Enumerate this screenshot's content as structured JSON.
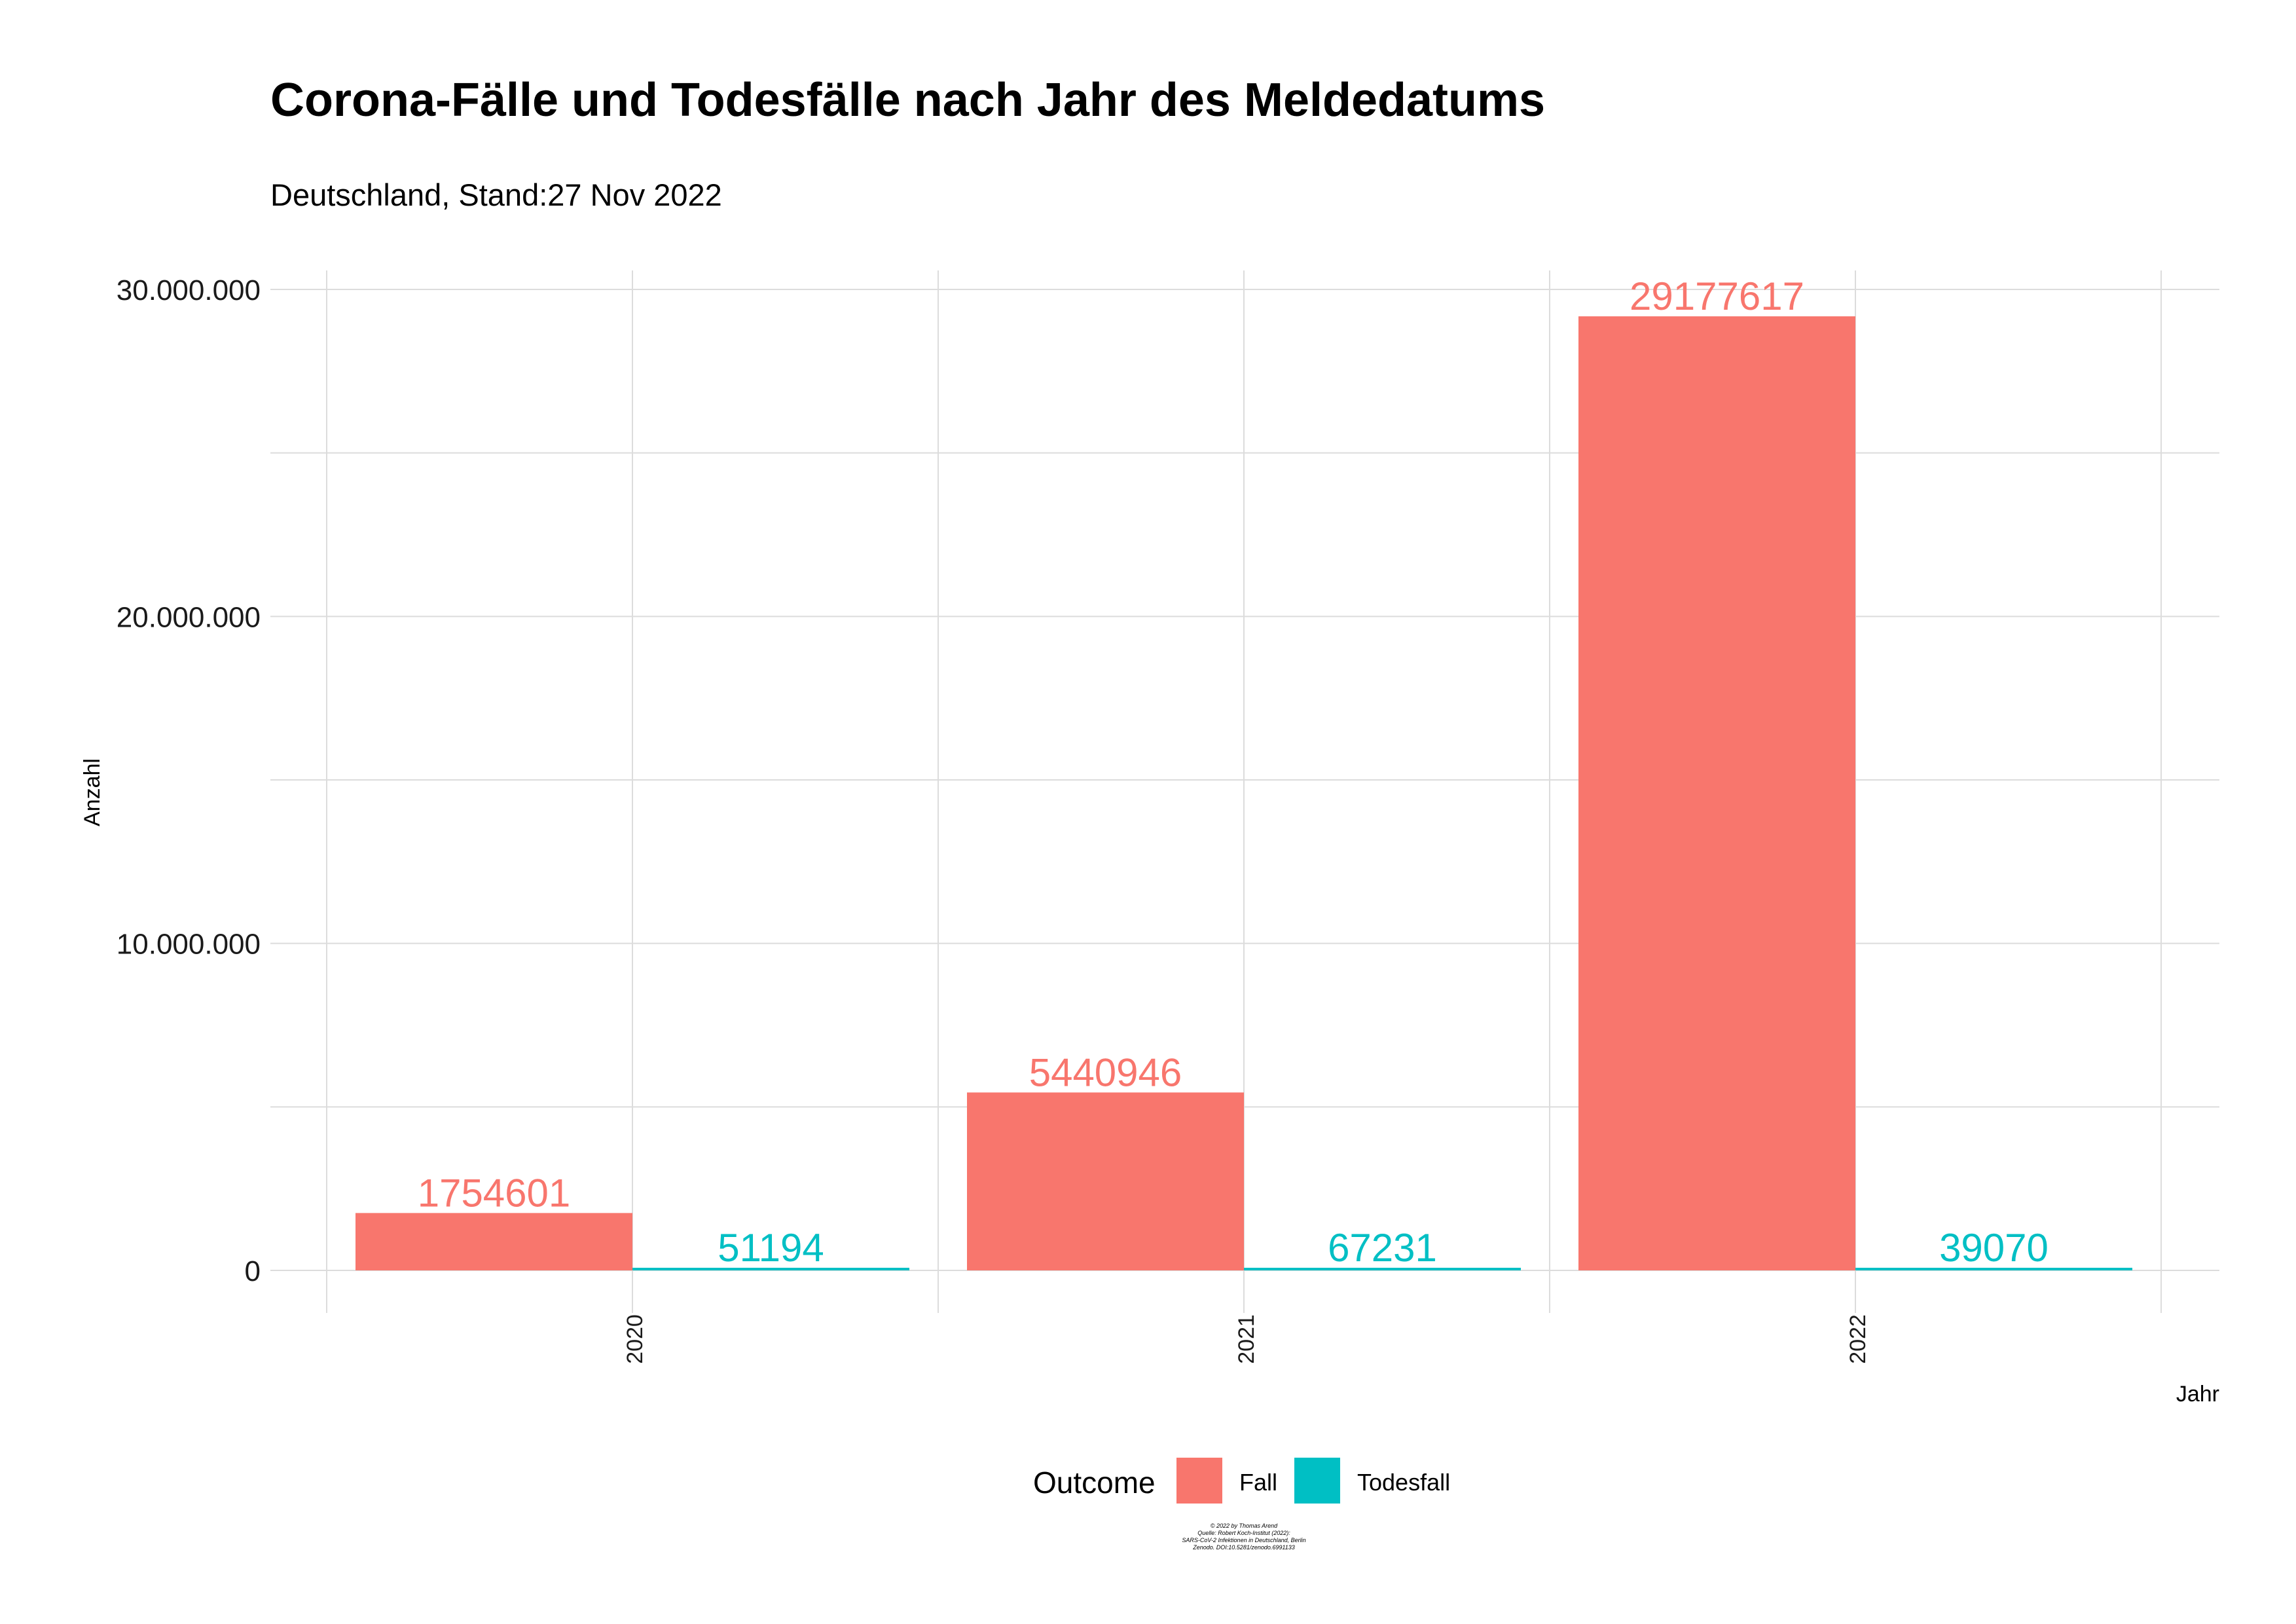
{
  "title": "Corona-Fälle und Todesfälle nach Jahr des Meldedatums",
  "subtitle": "Deutschland, Stand:27 Nov 2022",
  "caption": [
    "© 2022 by Thomas Arend",
    "Quelle: Robert Koch-Institut (2022):",
    "SARS-CoV-2 Infektionen in Deutschland, Berlin",
    "Zenodo. DOI:10.5281/zenodo.6991133"
  ],
  "colors": {
    "Fall": "#F8766D",
    "Todesfall": "#00BFC4",
    "grid": "#DCDCDC"
  },
  "chart_data": {
    "type": "bar",
    "title": "Corona-Fälle und Todesfälle nach Jahr des Meldedatums",
    "subtitle": "Deutschland, Stand:27 Nov 2022",
    "xlabel": "Jahr",
    "ylabel": "Anzahl",
    "categories": [
      "2020",
      "2021",
      "2022"
    ],
    "series": [
      {
        "name": "Fall",
        "values": [
          1754601,
          5440946,
          29177617
        ]
      },
      {
        "name": "Todesfall",
        "values": [
          51194,
          67231,
          39070
        ]
      }
    ],
    "ylim": [
      0,
      30000000
    ],
    "yticks": [
      0,
      10000000,
      20000000,
      30000000
    ],
    "ytick_labels": [
      "0",
      "10.000.000",
      "20.000.000",
      "30.000.000"
    ],
    "grid": true,
    "legend": {
      "title": "Outcome",
      "position": "bottom",
      "entries": [
        "Fall",
        "Todesfall"
      ]
    },
    "data_labels": true
  }
}
